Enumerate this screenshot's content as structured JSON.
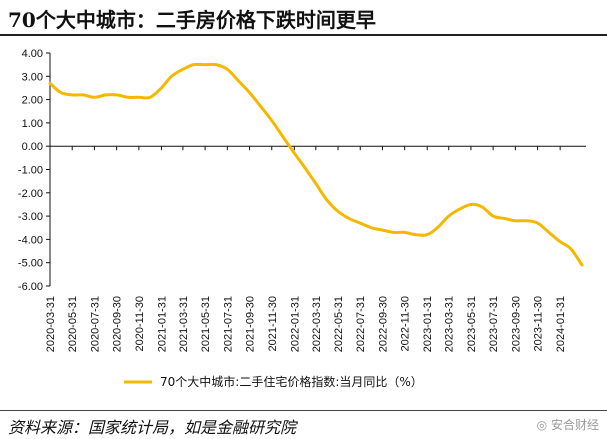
{
  "title": "70个大中城市：二手房价格下跌时间更早",
  "source": "资料来源：国家统计局，如是金融研究院",
  "watermark": "安合财经",
  "colors": {
    "line": "#F5B800",
    "axis": "#111111"
  },
  "chart_data": {
    "type": "line",
    "title": "70个大中城市：二手房价格下跌时间更早",
    "xlabel": "",
    "ylabel": "",
    "ylim": [
      -6,
      4
    ],
    "yticks": [
      "4.00",
      "3.00",
      "2.00",
      "1.00",
      "0.00",
      "-1.00",
      "-2.00",
      "-3.00",
      "-4.00",
      "-5.00",
      "-6.00"
    ],
    "xticks": [
      "2020-03-31",
      "2020-05-31",
      "2020-07-31",
      "2020-09-30",
      "2020-11-30",
      "2021-01-31",
      "2021-03-31",
      "2021-05-31",
      "2021-07-31",
      "2021-09-30",
      "2021-11-30",
      "2022-01-31",
      "2022-03-31",
      "2022-05-31",
      "2022-07-31",
      "2022-09-30",
      "2022-11-30",
      "2023-01-31",
      "2023-03-31",
      "2023-05-31",
      "2023-07-31",
      "2023-09-30",
      "2023-11-30",
      "2024-01-31"
    ],
    "legend_position": "bottom",
    "grid": false,
    "series": [
      {
        "name": "70个大中城市:二手住宅价格指数:当月同比（%）",
        "x": [
          "2020-03-31",
          "2020-04-30",
          "2020-05-31",
          "2020-06-30",
          "2020-07-31",
          "2020-08-31",
          "2020-09-30",
          "2020-10-31",
          "2020-11-30",
          "2020-12-31",
          "2021-01-31",
          "2021-02-28",
          "2021-03-31",
          "2021-04-30",
          "2021-05-31",
          "2021-06-30",
          "2021-07-31",
          "2021-08-31",
          "2021-09-30",
          "2021-10-31",
          "2021-11-30",
          "2021-12-31",
          "2022-01-31",
          "2022-02-28",
          "2022-03-31",
          "2022-04-30",
          "2022-05-31",
          "2022-06-30",
          "2022-07-31",
          "2022-08-31",
          "2022-09-30",
          "2022-10-31",
          "2022-11-30",
          "2022-12-31",
          "2023-01-31",
          "2023-02-28",
          "2023-03-31",
          "2023-04-30",
          "2023-05-31",
          "2023-06-30",
          "2023-07-31",
          "2023-08-31",
          "2023-09-30",
          "2023-10-31",
          "2023-11-30",
          "2023-12-31",
          "2024-01-31",
          "2024-02-29",
          "2024-03-31"
        ],
        "values": [
          2.7,
          2.3,
          2.2,
          2.2,
          2.1,
          2.2,
          2.2,
          2.1,
          2.1,
          2.1,
          2.5,
          3.0,
          3.3,
          3.5,
          3.5,
          3.5,
          3.3,
          2.8,
          2.3,
          1.7,
          1.1,
          0.4,
          -0.3,
          -0.9,
          -1.6,
          -2.3,
          -2.8,
          -3.1,
          -3.3,
          -3.5,
          -3.6,
          -3.7,
          -3.7,
          -3.8,
          -3.8,
          -3.5,
          -3.0,
          -2.7,
          -2.5,
          -2.6,
          -3.0,
          -3.1,
          -3.2,
          -3.2,
          -3.3,
          -3.7,
          -4.1,
          -4.4,
          -5.1
        ]
      }
    ]
  }
}
